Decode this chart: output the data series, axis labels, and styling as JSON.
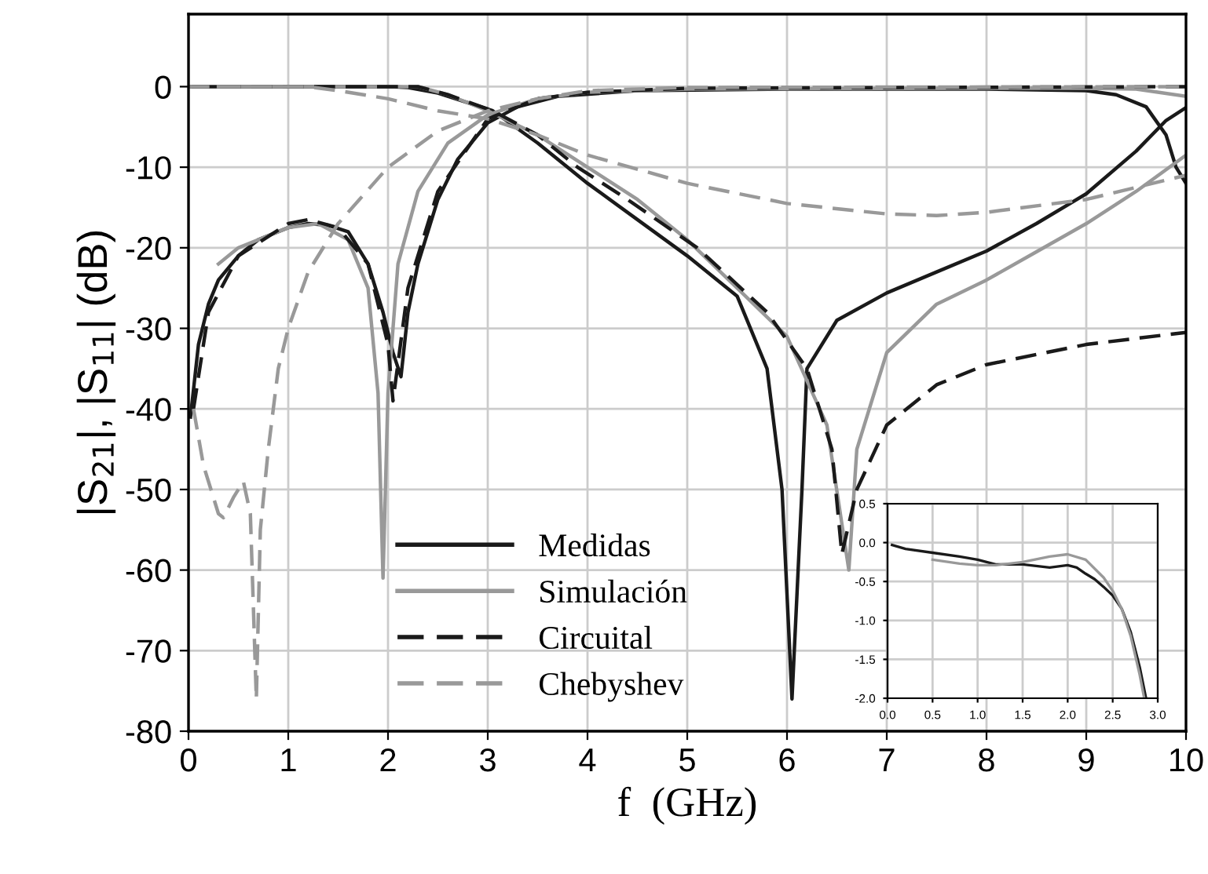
{
  "chart_data": [
    {
      "type": "line",
      "xlabel": "f  (GHz)",
      "ylabel": "|S$_{21}$|, |S$_{11}$| (dB)",
      "xlim": [
        0,
        10
      ],
      "ylim": [
        -80,
        9
      ],
      "xticks": [
        0,
        1,
        2,
        3,
        4,
        5,
        6,
        7,
        8,
        9,
        10
      ],
      "yticks": [
        -80,
        -70,
        -60,
        -50,
        -40,
        -30,
        -20,
        -10,
        0
      ],
      "grid": true,
      "legend": "bottom left",
      "series": [
        {
          "name": "Medidas",
          "color": "#1a1a1a",
          "line_style": "solid",
          "x": [
            0.05,
            0.5,
            1.0,
            1.5,
            2.0,
            2.2,
            2.5,
            2.8,
            3.05,
            3.5,
            4.0,
            4.5,
            5.0,
            5.5,
            5.8,
            5.95,
            6.05,
            6.15,
            6.2,
            6.5,
            7.0,
            7.5,
            8.0,
            8.5,
            9.0,
            9.5,
            9.8,
            10.0
          ],
          "values": [
            0,
            0,
            0,
            0,
            0,
            -0.1,
            -0.8,
            -2,
            -3,
            -7,
            -12,
            -16.5,
            -21,
            -26,
            -35,
            -50,
            -76,
            -50,
            -35,
            -29,
            -25.6,
            -23,
            -20.4,
            -17,
            -13.3,
            -8,
            -4.2,
            -2.6
          ]
        },
        {
          "color": "#1a1a1a",
          "line_style": "solid",
          "x": [
            0.02,
            0.1,
            0.2,
            0.3,
            0.5,
            0.7,
            1.0,
            1.2,
            1.4,
            1.6,
            1.8,
            1.95,
            2.05,
            2.13,
            2.2,
            2.3,
            2.5,
            2.7,
            3.0,
            3.3,
            3.7,
            4.5,
            6.0,
            8.0,
            9.0,
            9.3,
            9.6,
            9.8,
            9.9,
            10.0
          ],
          "values": [
            -41,
            -32,
            -27,
            -24,
            -21,
            -19,
            -17.5,
            -17,
            -17.2,
            -18,
            -22,
            -28,
            -33,
            -36,
            -28,
            -22,
            -14,
            -9,
            -4.5,
            -2.5,
            -1.2,
            -0.5,
            -0.3,
            -0.3,
            -0.5,
            -1,
            -2.5,
            -6,
            -10,
            -12
          ]
        },
        {
          "name": "Simulación",
          "color": "#999999",
          "line_style": "solid",
          "x": [
            0.3,
            1.0,
            2.0,
            2.3,
            2.6,
            3.0,
            3.5,
            4.0,
            4.5,
            5.0,
            5.5,
            6.0,
            6.4,
            6.62,
            6.7,
            7.0,
            7.5,
            8.0,
            8.5,
            9.0,
            9.5,
            10.0
          ],
          "values": [
            0,
            0,
            0,
            0,
            -1,
            -3,
            -6,
            -10,
            -14,
            -19,
            -25,
            -31,
            -42,
            -60,
            -45,
            -33,
            -27,
            -24,
            -20.5,
            -17,
            -13,
            -8.5
          ]
        },
        {
          "color": "#999999",
          "line_style": "solid",
          "x": [
            0.3,
            0.5,
            1.0,
            1.3,
            1.6,
            1.8,
            1.9,
            1.95,
            2.0,
            2.1,
            2.3,
            2.6,
            3.0,
            3.5,
            4.0,
            5.0,
            8.0,
            9.0,
            9.5,
            10.0
          ],
          "values": [
            -22,
            -20,
            -17.5,
            -17,
            -19,
            -25,
            -38,
            -61,
            -38,
            -22,
            -13,
            -7,
            -3.5,
            -1.5,
            -0.7,
            -0.3,
            -0.2,
            -0.2,
            -0.3,
            -1.2
          ]
        },
        {
          "name": "Circuital",
          "color": "#1a1a1a",
          "line_style": "dashed",
          "x": [
            0.0,
            1.0,
            2.0,
            2.3,
            2.6,
            3.05,
            3.5,
            3.9,
            4.4,
            5.1,
            5.8,
            6.2,
            6.45,
            6.55,
            6.7,
            7.0,
            7.5,
            8.0,
            9.0,
            10.0
          ],
          "values": [
            0,
            0,
            0,
            0,
            -1,
            -3,
            -6,
            -10,
            -14,
            -20,
            -28,
            -35,
            -45,
            -58,
            -50,
            -42,
            -37,
            -34.5,
            -32,
            -30.5
          ]
        },
        {
          "color": "#1a1a1a",
          "line_style": "dashed",
          "x": [
            0.05,
            0.2,
            0.5,
            1.0,
            1.2,
            1.5,
            1.8,
            2.0,
            2.05,
            2.2,
            2.5,
            3.0,
            3.5,
            4.0,
            5.0,
            10.0
          ],
          "values": [
            -40,
            -28,
            -21,
            -17,
            -16.5,
            -17.5,
            -22,
            -32,
            -39,
            -25,
            -13,
            -4,
            -1.5,
            -0.7,
            -0.2,
            0
          ]
        },
        {
          "name": "Chebyshev",
          "color": "#999999",
          "line_style": "dashed",
          "x": [
            0.0,
            1.2,
            1.5,
            2.0,
            2.5,
            3.0,
            3.5,
            4.0,
            5.0,
            6.0,
            7.0,
            7.5,
            8.0,
            9.0,
            9.5,
            10.0
          ],
          "values": [
            0,
            0,
            -0.5,
            -1.5,
            -3,
            -4,
            -6,
            -8.5,
            -12,
            -14.5,
            -15.8,
            -16,
            -15.6,
            -14,
            -12.5,
            -11
          ]
        },
        {
          "color": "#999999",
          "line_style": "dashed",
          "x": [
            0.05,
            0.15,
            0.3,
            0.35,
            0.45,
            0.55,
            0.62,
            0.68,
            0.72,
            0.8,
            0.9,
            1.0,
            1.2,
            1.5,
            2.0,
            2.5,
            3.0,
            3.5,
            4.0,
            5.0,
            10.0
          ],
          "values": [
            -40,
            -47,
            -53,
            -53.5,
            -51,
            -49,
            -53,
            -76,
            -55,
            -45,
            -35,
            -30,
            -23,
            -17,
            -10,
            -5.5,
            -3,
            -1.5,
            -0.5,
            -0.1,
            0
          ]
        }
      ]
    },
    {
      "type": "line",
      "xlim": [
        0,
        3
      ],
      "ylim": [
        -2,
        0.5
      ],
      "xticks": [
        {
          "value": 0,
          "label": "0.0"
        },
        0.5,
        {
          "value": 1,
          "label": "1.0"
        },
        1.5,
        {
          "value": 2,
          "label": "2.0"
        },
        2.5,
        {
          "value": 3,
          "label": "3.0"
        }
      ],
      "yticks": [
        {
          "value": -2,
          "label": "-2.0"
        },
        -1.5,
        {
          "value": -1,
          "label": "-1.0"
        },
        -0.5,
        {
          "value": 0,
          "label": "0.0"
        },
        0.5
      ],
      "grid": true,
      "series": [
        {
          "color": "#1a1a1a",
          "line_style": "solid",
          "x": [
            0.05,
            0.2,
            0.5,
            0.8,
            1.0,
            1.2,
            1.5,
            1.8,
            2.0,
            2.1,
            2.2,
            2.3,
            2.4,
            2.5,
            2.6,
            2.7,
            2.8,
            2.87
          ],
          "values": [
            -0.03,
            -0.08,
            -0.13,
            -0.18,
            -0.22,
            -0.28,
            -0.28,
            -0.32,
            -0.29,
            -0.32,
            -0.4,
            -0.47,
            -0.57,
            -0.68,
            -0.85,
            -1.15,
            -1.6,
            -2.0
          ]
        },
        {
          "color": "#999999",
          "line_style": "solid",
          "x": [
            0.5,
            0.8,
            1.0,
            1.2,
            1.5,
            1.8,
            2.0,
            2.2,
            2.4,
            2.5,
            2.6,
            2.7,
            2.8,
            2.85
          ],
          "values": [
            -0.22,
            -0.27,
            -0.29,
            -0.29,
            -0.25,
            -0.18,
            -0.15,
            -0.22,
            -0.45,
            -0.62,
            -0.85,
            -1.2,
            -1.7,
            -2.0
          ]
        }
      ]
    }
  ]
}
